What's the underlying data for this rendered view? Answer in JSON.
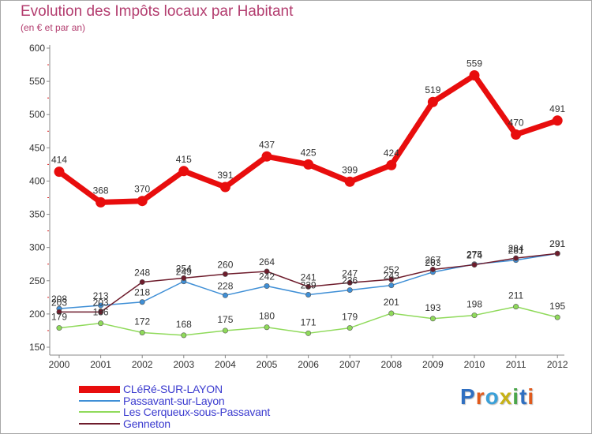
{
  "title": "Evolution des Impôts locaux par Habitant",
  "subtitle": "(en € et par an)",
  "logo": {
    "text": "Proxiti",
    "letter_colors": [
      "#2f6fc1",
      "#e05a1c",
      "#3aa0d8",
      "#c7b216",
      "#4aa64a",
      "#2f6fc1",
      "#e05a1c"
    ]
  },
  "chart_data": {
    "type": "line",
    "x": [
      "2000",
      "2001",
      "2002",
      "2003",
      "2004",
      "2005",
      "2006",
      "2007",
      "2008",
      "2009",
      "2010",
      "2011",
      "2012"
    ],
    "ylim": [
      150,
      600
    ],
    "yticks": [
      150,
      200,
      250,
      300,
      350,
      400,
      450,
      500,
      550,
      600
    ],
    "grid": false,
    "legend_position": "bottom-left",
    "series": [
      {
        "name": "CLéRé-SUR-LAYON",
        "color": "#e80d0d",
        "values": [
          414,
          368,
          370,
          415,
          391,
          437,
          425,
          399,
          424,
          519,
          559,
          470,
          491
        ]
      },
      {
        "name": "Passavant-sur-Layon",
        "color": "#3f8fd6",
        "values": [
          208,
          213,
          218,
          249,
          228,
          242,
          229,
          236,
          243,
          263,
          275,
          281,
          291
        ]
      },
      {
        "name": "Les Cerqueux-sous-Passavant",
        "color": "#8fda5a",
        "values": [
          179,
          186,
          172,
          168,
          175,
          180,
          171,
          179,
          201,
          193,
          198,
          211,
          195
        ]
      },
      {
        "name": "Genneton",
        "color": "#6e1c2c",
        "values": [
          203,
          203,
          248,
          254,
          260,
          264,
          241,
          247,
          252,
          267,
          274,
          284,
          291
        ]
      }
    ]
  }
}
